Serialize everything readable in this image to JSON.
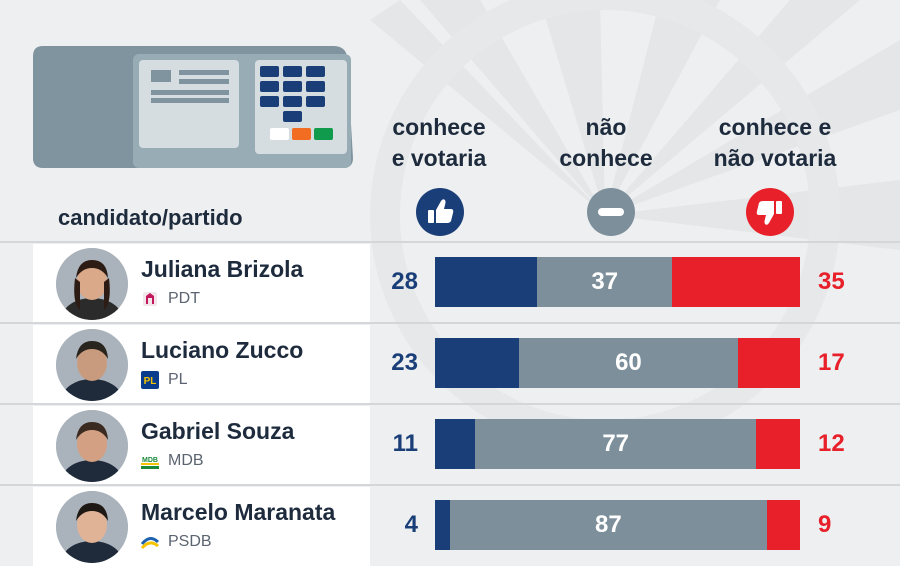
{
  "chart_data": {
    "type": "bar",
    "stacked": true,
    "orientation": "horizontal",
    "row_header": "candidato/partido",
    "series": [
      {
        "name": "conhece e votaria",
        "color": "#1a3e78",
        "icon": "thumbs-up-icon",
        "values": [
          28,
          23,
          11,
          4
        ]
      },
      {
        "name": "não conhece",
        "color": "#7c8f9b",
        "icon": "minus-icon",
        "values": [
          37,
          60,
          77,
          87
        ]
      },
      {
        "name": "conhece e não votaria",
        "color": "#e8202a",
        "icon": "thumbs-down-icon",
        "values": [
          35,
          17,
          12,
          9
        ]
      }
    ],
    "candidates": [
      {
        "name": "Juliana Brizola",
        "party": "PDT"
      },
      {
        "name": "Luciano Zucco",
        "party": "PL"
      },
      {
        "name": "Gabriel Souza",
        "party": "MDB"
      },
      {
        "name": "Marcelo Maranata",
        "party": "PSDB"
      }
    ],
    "xlim": [
      0,
      100
    ]
  },
  "header": {
    "col1_line1": "conhece",
    "col1_line2": "e votaria",
    "col2_line1": "não",
    "col2_line2": "conhece",
    "col3_line1": "conhece e",
    "col3_line2": "não votaria"
  },
  "icons": {
    "ballot_box": "urna-icon",
    "avatar": "candidate-photo"
  }
}
